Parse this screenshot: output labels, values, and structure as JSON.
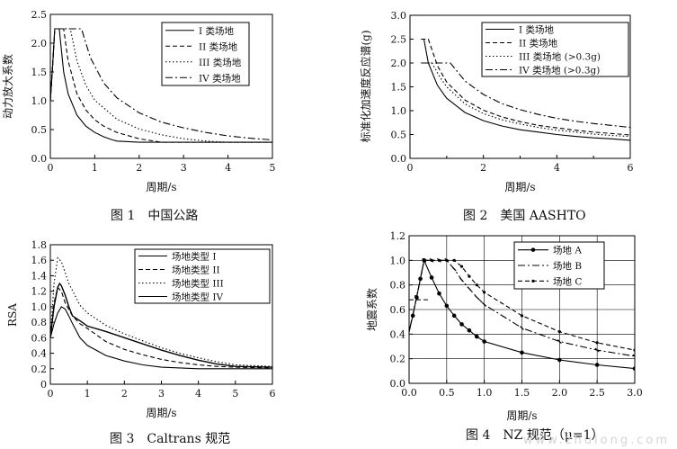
{
  "figures": [
    {
      "caption": "图 1　中国公路"
    },
    {
      "caption": "图 2　美国 AASHTO"
    },
    {
      "caption": "图 3　Caltrans 规范"
    },
    {
      "caption": "图 4　NZ 规范（μ=1）"
    }
  ],
  "watermark": "www.zhulong.com",
  "chart_data": [
    {
      "type": "line",
      "title": "",
      "xlabel": "周期/s",
      "ylabel": "动力放大系数",
      "xlim": [
        0,
        5
      ],
      "ylim": [
        0,
        2.5
      ],
      "xticks": [
        "0",
        "1",
        "2",
        "3",
        "4",
        "5"
      ],
      "yticks": [
        "0.0",
        "0.5",
        "1.0",
        "1.5",
        "2.0",
        "2.5"
      ],
      "grid": false,
      "legend_position": "top-right",
      "series": [
        {
          "name": "I 类场地",
          "dash": "solid",
          "points": [
            [
              0,
              1.0
            ],
            [
              0.05,
              1.6
            ],
            [
              0.1,
              2.25
            ],
            [
              0.2,
              2.25
            ],
            [
              0.3,
              1.5
            ],
            [
              0.4,
              1.12
            ],
            [
              0.6,
              0.75
            ],
            [
              0.8,
              0.56
            ],
            [
              1.0,
              0.45
            ],
            [
              1.2,
              0.375
            ],
            [
              1.4,
              0.32
            ],
            [
              1.5,
              0.3
            ],
            [
              2,
              0.28
            ],
            [
              3,
              0.28
            ],
            [
              4,
              0.28
            ],
            [
              5,
              0.28
            ]
          ]
        },
        {
          "name": "II 类场地",
          "dash": "dashed",
          "points": [
            [
              0,
              1.0
            ],
            [
              0.05,
              1.6
            ],
            [
              0.1,
              2.25
            ],
            [
              0.3,
              2.25
            ],
            [
              0.4,
              1.69
            ],
            [
              0.6,
              1.12
            ],
            [
              0.8,
              0.84
            ],
            [
              1.0,
              0.67
            ],
            [
              1.2,
              0.56
            ],
            [
              1.5,
              0.45
            ],
            [
              2,
              0.34
            ],
            [
              2.5,
              0.28
            ],
            [
              3,
              0.28
            ],
            [
              4,
              0.28
            ],
            [
              5,
              0.28
            ]
          ]
        },
        {
          "name": "III 类场地",
          "dash": "dotted",
          "points": [
            [
              0,
              1.0
            ],
            [
              0.05,
              1.6
            ],
            [
              0.1,
              2.25
            ],
            [
              0.45,
              2.25
            ],
            [
              0.6,
              1.69
            ],
            [
              0.8,
              1.27
            ],
            [
              1.0,
              1.01
            ],
            [
              1.5,
              0.68
            ],
            [
              2,
              0.51
            ],
            [
              2.5,
              0.41
            ],
            [
              3,
              0.34
            ],
            [
              3.5,
              0.3
            ],
            [
              4,
              0.28
            ],
            [
              5,
              0.28
            ]
          ]
        },
        {
          "name": "IV 类场地",
          "dash": "dashdot",
          "points": [
            [
              0,
              1.0
            ],
            [
              0.05,
              1.6
            ],
            [
              0.1,
              2.25
            ],
            [
              0.7,
              2.25
            ],
            [
              0.9,
              1.75
            ],
            [
              1.2,
              1.31
            ],
            [
              1.5,
              1.05
            ],
            [
              2,
              0.79
            ],
            [
              2.5,
              0.63
            ],
            [
              3,
              0.53
            ],
            [
              3.5,
              0.45
            ],
            [
              4,
              0.39
            ],
            [
              4.5,
              0.35
            ],
            [
              5,
              0.32
            ]
          ]
        }
      ]
    },
    {
      "type": "line",
      "title": "",
      "xlabel": "周期/s",
      "ylabel": "标准化加速度反应谱(g)",
      "xlim": [
        0,
        6
      ],
      "ylim": [
        0,
        3.0
      ],
      "xticks": [
        "0",
        "2",
        "4",
        "6"
      ],
      "yticks": [
        "0.0",
        "0.5",
        "1.0",
        "1.5",
        "2.0",
        "2.5",
        "3.0"
      ],
      "minor_xticks": [
        "1",
        "3",
        "5"
      ],
      "grid": false,
      "legend_position": "top-right",
      "series": [
        {
          "name": "I 类场地",
          "dash": "solid",
          "points": [
            [
              0.3,
              2.5
            ],
            [
              0.38,
              2.5
            ],
            [
              0.5,
              2.0
            ],
            [
              0.75,
              1.53
            ],
            [
              1,
              1.26
            ],
            [
              1.5,
              0.96
            ],
            [
              2,
              0.79
            ],
            [
              2.5,
              0.68
            ],
            [
              3,
              0.6
            ],
            [
              3.5,
              0.55
            ],
            [
              4,
              0.5
            ],
            [
              4.5,
              0.46
            ],
            [
              5,
              0.43
            ],
            [
              5.5,
              0.41
            ],
            [
              6,
              0.38
            ]
          ]
        },
        {
          "name": "II 类场地",
          "dash": "dashed",
          "points": [
            [
              0.3,
              2.5
            ],
            [
              0.5,
              2.5
            ],
            [
              0.75,
              1.94
            ],
            [
              1,
              1.6
            ],
            [
              1.5,
              1.22
            ],
            [
              2,
              1.01
            ],
            [
              2.5,
              0.87
            ],
            [
              3,
              0.77
            ],
            [
              3.5,
              0.69
            ],
            [
              4,
              0.64
            ],
            [
              4.5,
              0.59
            ],
            [
              5,
              0.55
            ],
            [
              5.5,
              0.52
            ],
            [
              6,
              0.49
            ]
          ]
        },
        {
          "name": "III 类场地 (>0.3g)",
          "dash": "dotted",
          "points": [
            [
              0.3,
              2.0
            ],
            [
              0.6,
              2.0
            ],
            [
              0.8,
              1.72
            ],
            [
              1,
              1.5
            ],
            [
              1.5,
              1.14
            ],
            [
              2,
              0.94
            ],
            [
              2.5,
              0.81
            ],
            [
              3,
              0.72
            ],
            [
              3.5,
              0.65
            ],
            [
              4,
              0.59
            ],
            [
              4.5,
              0.55
            ],
            [
              5,
              0.51
            ],
            [
              5.5,
              0.48
            ],
            [
              6,
              0.46
            ]
          ]
        },
        {
          "name": "IV 类场地 (>0.3g)",
          "dash": "dashdot",
          "points": [
            [
              0.3,
              2.0
            ],
            [
              1.1,
              2.0
            ],
            [
              1.5,
              1.62
            ],
            [
              2,
              1.34
            ],
            [
              2.5,
              1.15
            ],
            [
              3,
              1.02
            ],
            [
              3.5,
              0.92
            ],
            [
              4,
              0.84
            ],
            [
              4.5,
              0.78
            ],
            [
              5,
              0.73
            ],
            [
              5.5,
              0.69
            ],
            [
              6,
              0.65
            ]
          ]
        }
      ]
    },
    {
      "type": "line",
      "title": "",
      "xlabel": "周期/s",
      "ylabel": "RSA",
      "xlim": [
        0,
        6
      ],
      "ylim": [
        0,
        1.8
      ],
      "xticks": [
        "0",
        "1",
        "2",
        "3",
        "4",
        "5",
        "6"
      ],
      "yticks": [
        "0",
        "0.2",
        "0.4",
        "0.6",
        "0.8",
        "1.0",
        "1.2",
        "1.4",
        "1.6",
        "1.8"
      ],
      "grid": false,
      "legend_position": "top-right",
      "series": [
        {
          "name": "场地类型 I",
          "dash": "solid",
          "points": [
            [
              0,
              0.6
            ],
            [
              0.1,
              0.78
            ],
            [
              0.2,
              0.92
            ],
            [
              0.3,
              1.0
            ],
            [
              0.4,
              0.97
            ],
            [
              0.5,
              0.88
            ],
            [
              0.6,
              0.78
            ],
            [
              0.8,
              0.6
            ],
            [
              1,
              0.5
            ],
            [
              1.5,
              0.37
            ],
            [
              2,
              0.3
            ],
            [
              2.5,
              0.25
            ],
            [
              3,
              0.22
            ],
            [
              4,
              0.2
            ],
            [
              5,
              0.2
            ],
            [
              6,
              0.2
            ]
          ]
        },
        {
          "name": "场地类型 II",
          "dash": "dashed",
          "points": [
            [
              0,
              0.6
            ],
            [
              0.1,
              1.05
            ],
            [
              0.2,
              1.25
            ],
            [
              0.3,
              1.2
            ],
            [
              0.4,
              1.05
            ],
            [
              0.6,
              0.88
            ],
            [
              0.8,
              0.78
            ],
            [
              1,
              0.72
            ],
            [
              1.5,
              0.55
            ],
            [
              2,
              0.45
            ],
            [
              2.5,
              0.38
            ],
            [
              3,
              0.32
            ],
            [
              3.5,
              0.28
            ],
            [
              4,
              0.25
            ],
            [
              4.5,
              0.23
            ],
            [
              5,
              0.22
            ],
            [
              6,
              0.21
            ]
          ]
        },
        {
          "name": "场地类型 III",
          "dash": "dotted",
          "points": [
            [
              0,
              0.6
            ],
            [
              0.1,
              1.3
            ],
            [
              0.2,
              1.63
            ],
            [
              0.3,
              1.58
            ],
            [
              0.5,
              1.3
            ],
            [
              0.8,
              1.02
            ],
            [
              1,
              0.92
            ],
            [
              1.5,
              0.76
            ],
            [
              2,
              0.65
            ],
            [
              2.5,
              0.56
            ],
            [
              3,
              0.47
            ],
            [
              3.5,
              0.4
            ],
            [
              4,
              0.34
            ],
            [
              4.5,
              0.29
            ],
            [
              5,
              0.25
            ],
            [
              6,
              0.23
            ]
          ]
        },
        {
          "name": "场地类型 IV",
          "dash": "solid",
          "points": [
            [
              0,
              0.6
            ],
            [
              0.1,
              1.0
            ],
            [
              0.2,
              1.25
            ],
            [
              0.25,
              1.3
            ],
            [
              0.3,
              1.27
            ],
            [
              0.4,
              1.15
            ],
            [
              0.5,
              1.0
            ],
            [
              0.6,
              0.88
            ],
            [
              0.8,
              0.82
            ],
            [
              1,
              0.75
            ],
            [
              1.5,
              0.68
            ],
            [
              2,
              0.6
            ],
            [
              2.5,
              0.52
            ],
            [
              3,
              0.44
            ],
            [
              3.5,
              0.37
            ],
            [
              4,
              0.31
            ],
            [
              4.5,
              0.26
            ],
            [
              5,
              0.23
            ],
            [
              6,
              0.22
            ]
          ]
        }
      ]
    },
    {
      "type": "line",
      "title": "",
      "xlabel": "周期/s",
      "ylabel": "地震系数",
      "xlim": [
        0,
        3.0
      ],
      "ylim": [
        0,
        1.2
      ],
      "xticks": [
        "0.0",
        "0.5",
        "1.0",
        "1.5",
        "2.0",
        "2.5",
        "3.0"
      ],
      "yticks": [
        "0.0",
        "0.2",
        "0.4",
        "0.6",
        "0.8",
        "1.0",
        "1.2"
      ],
      "grid": true,
      "legend_position": "top-right",
      "series": [
        {
          "name": "场地 A",
          "dash": "solid",
          "marker": "circle",
          "points": [
            [
              0,
              0.42
            ],
            [
              0.05,
              0.55
            ],
            [
              0.1,
              0.7
            ],
            [
              0.15,
              0.85
            ],
            [
              0.2,
              1.0
            ],
            [
              0.3,
              0.86
            ],
            [
              0.4,
              0.73
            ],
            [
              0.5,
              0.63
            ],
            [
              0.6,
              0.55
            ],
            [
              0.7,
              0.48
            ],
            [
              0.8,
              0.43
            ],
            [
              0.9,
              0.38
            ],
            [
              1.0,
              0.34
            ],
            [
              1.5,
              0.25
            ],
            [
              2.0,
              0.19
            ],
            [
              2.5,
              0.15
            ],
            [
              3.0,
              0.12
            ]
          ]
        },
        {
          "name": "场地 B",
          "dash": "dashdot",
          "marker": "tick",
          "points": [
            [
              0,
              0.42
            ],
            [
              0.1,
              0.7
            ],
            [
              0.2,
              1.0
            ],
            [
              0.3,
              1.0
            ],
            [
              0.4,
              1.0
            ],
            [
              0.5,
              1.0
            ],
            [
              0.6,
              0.93
            ],
            [
              0.7,
              0.84
            ],
            [
              0.8,
              0.77
            ],
            [
              0.9,
              0.7
            ],
            [
              1.0,
              0.64
            ],
            [
              1.5,
              0.45
            ],
            [
              2.0,
              0.34
            ],
            [
              2.5,
              0.27
            ],
            [
              3.0,
              0.22
            ]
          ]
        },
        {
          "name": "场地 C",
          "dash": "dashed",
          "marker": "dot",
          "points": [
            [
              0,
              0.42
            ],
            [
              0.1,
              0.7
            ],
            [
              0.2,
              1.0
            ],
            [
              0.3,
              1.0
            ],
            [
              0.4,
              1.0
            ],
            [
              0.5,
              1.0
            ],
            [
              0.6,
              1.0
            ],
            [
              0.7,
              0.95
            ],
            [
              0.8,
              0.87
            ],
            [
              0.9,
              0.8
            ],
            [
              1.0,
              0.74
            ],
            [
              1.5,
              0.55
            ],
            [
              2.0,
              0.42
            ],
            [
              2.5,
              0.33
            ],
            [
              3.0,
              0.27
            ]
          ]
        }
      ],
      "extra_segments": [
        {
          "points": [
            [
              0,
              0.68
            ],
            [
              0.25,
              0.68
            ]
          ],
          "dash": "dashed"
        }
      ]
    }
  ]
}
